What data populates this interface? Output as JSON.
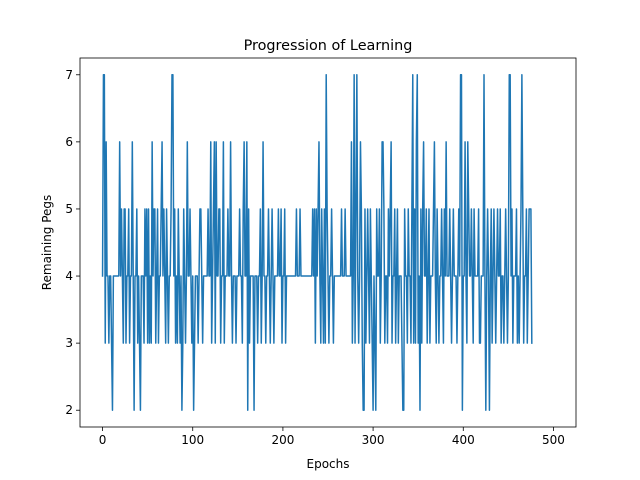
{
  "chart_data": {
    "type": "line",
    "title": "Progression of Learning",
    "xlabel": "Epochs",
    "ylabel": "Remaining Pegs",
    "xlim": [
      -25,
      525
    ],
    "ylim": [
      1.75,
      7.25
    ],
    "xticks": [
      0,
      100,
      200,
      300,
      400,
      500
    ],
    "yticks": [
      2,
      3,
      4,
      5,
      6,
      7
    ],
    "grid": false,
    "legend": "none",
    "series_color": "#1f77b4",
    "series": [
      {
        "x_start": 0,
        "x_step": 1,
        "values": [
          4,
          7,
          7,
          3,
          6,
          4,
          4,
          3,
          4,
          4,
          3,
          2,
          4,
          4,
          4,
          4,
          4,
          4,
          4,
          6,
          4,
          5,
          4,
          3,
          5,
          5,
          3,
          4,
          4,
          5,
          3,
          4,
          4,
          6,
          4,
          2,
          4,
          4,
          5,
          3,
          4,
          3,
          2,
          4,
          4,
          4,
          3,
          5,
          4,
          5,
          3,
          5,
          3,
          4,
          3,
          6,
          4,
          5,
          5,
          3,
          4,
          5,
          3,
          4,
          4,
          5,
          6,
          4,
          5,
          4,
          3,
          5,
          4,
          3,
          4,
          4,
          5,
          7,
          7,
          4,
          5,
          3,
          4,
          3,
          5,
          4,
          3,
          4,
          2,
          3,
          5,
          4,
          3,
          4,
          6,
          4,
          4,
          5,
          4,
          3,
          4,
          2,
          3,
          4,
          4,
          4,
          3,
          4,
          5,
          5,
          4,
          3,
          4,
          4,
          4,
          4,
          4,
          5,
          4,
          4,
          6,
          3,
          4,
          5,
          6,
          3,
          6,
          4,
          4,
          5,
          5,
          3,
          4,
          4,
          6,
          3,
          4,
          4,
          4,
          5,
          4,
          4,
          6,
          4,
          3,
          4,
          4,
          4,
          3,
          4,
          4,
          4,
          5,
          4,
          4,
          3,
          5,
          6,
          4,
          4,
          6,
          2,
          5,
          3,
          4,
          4,
          4,
          4,
          2,
          4,
          4,
          4,
          3,
          4,
          4,
          5,
          3,
          4,
          6,
          4,
          4,
          3,
          4,
          4,
          5,
          4,
          3,
          4,
          5,
          4,
          3,
          4,
          4,
          4,
          4,
          5,
          4,
          4,
          5,
          3,
          4,
          4,
          5,
          3,
          4,
          4,
          4,
          4,
          4,
          4,
          4,
          4,
          4,
          4,
          4,
          5,
          4,
          4,
          4,
          5,
          4,
          4,
          4,
          4,
          4,
          4,
          4,
          4,
          4,
          4,
          4,
          4,
          4,
          5,
          4,
          5,
          3,
          5,
          4,
          5,
          6,
          4,
          3,
          5,
          4,
          3,
          5,
          3,
          7,
          5,
          4,
          3,
          4,
          4,
          5,
          4,
          3,
          4,
          4,
          4,
          4,
          4,
          4,
          4,
          4,
          5,
          4,
          4,
          4,
          5,
          4,
          4,
          4,
          4,
          4,
          4,
          6,
          3,
          4,
          7,
          3,
          5,
          7,
          4,
          3,
          4,
          6,
          5,
          3,
          2,
          2,
          5,
          3,
          4,
          5,
          4,
          3,
          5,
          4,
          3,
          2,
          4,
          3,
          2,
          5,
          4,
          4,
          5,
          3,
          4,
          6,
          6,
          5,
          3,
          4,
          4,
          3,
          5,
          4,
          5,
          6,
          3,
          4,
          4,
          5,
          3,
          4,
          5,
          3,
          4,
          4,
          4,
          3,
          2,
          2,
          5,
          4,
          4,
          3,
          5,
          4,
          4,
          3,
          5,
          7,
          3,
          5,
          3,
          6,
          7,
          3,
          4,
          2,
          5,
          3,
          5,
          6,
          4,
          4,
          5,
          3,
          4,
          5,
          3,
          4,
          4,
          4,
          5,
          6,
          4,
          3,
          5,
          4,
          3,
          4,
          4,
          5,
          4,
          3,
          5,
          4,
          6,
          4,
          4,
          4,
          5,
          4,
          3,
          4,
          5,
          4,
          4,
          4,
          3,
          4,
          5,
          4,
          7,
          7,
          2,
          4,
          4,
          6,
          4,
          3,
          6,
          5,
          4,
          4,
          5,
          4,
          3,
          5,
          4,
          4,
          4,
          4,
          5,
          3,
          3,
          4,
          4,
          4,
          7,
          4,
          2,
          4,
          5,
          4,
          2,
          4,
          5,
          3,
          4,
          5,
          4,
          3,
          4,
          5,
          4,
          4,
          5,
          3,
          4,
          4,
          3,
          4,
          5,
          4,
          3,
          4,
          7,
          7,
          4,
          5,
          3,
          4,
          4,
          4,
          5,
          3,
          4,
          3,
          4,
          5,
          7,
          5,
          3,
          4,
          4,
          5,
          3,
          4,
          5,
          5,
          5,
          3
        ]
      }
    ]
  }
}
